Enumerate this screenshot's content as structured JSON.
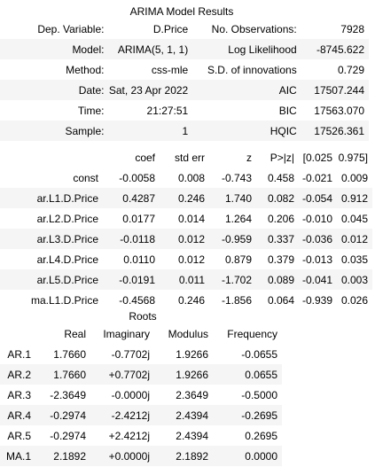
{
  "caption": "ARIMA Model Results",
  "summary": [
    [
      "Dep. Variable:",
      "D.Price",
      "No. Observations:",
      "7928"
    ],
    [
      "Model:",
      "ARIMA(5, 1, 1)",
      "Log Likelihood",
      "-8745.622"
    ],
    [
      "Method:",
      "css-mle",
      "S.D. of innovations",
      "0.729"
    ],
    [
      "Date:",
      "Sat, 23 Apr 2022",
      "AIC",
      "17507.244"
    ],
    [
      "Time:",
      "21:27:51",
      "BIC",
      "17563.070"
    ],
    [
      "Sample:",
      "1",
      "HQIC",
      "17526.361"
    ]
  ],
  "coef_headers": [
    "",
    "coef",
    "std err",
    "z",
    "P>|z|",
    "[0.025",
    "0.975]"
  ],
  "coef_rows": [
    [
      "const",
      "-0.0058",
      "0.008",
      "-0.743",
      "0.458",
      "-0.021",
      "0.009"
    ],
    [
      "ar.L1.D.Price",
      "0.4287",
      "0.246",
      "1.740",
      "0.082",
      "-0.054",
      "0.912"
    ],
    [
      "ar.L2.D.Price",
      "0.0177",
      "0.014",
      "1.264",
      "0.206",
      "-0.010",
      "0.045"
    ],
    [
      "ar.L3.D.Price",
      "-0.0118",
      "0.012",
      "-0.959",
      "0.337",
      "-0.036",
      "0.012"
    ],
    [
      "ar.L4.D.Price",
      "0.0110",
      "0.012",
      "0.879",
      "0.379",
      "-0.013",
      "0.035"
    ],
    [
      "ar.L5.D.Price",
      "-0.0191",
      "0.011",
      "-1.702",
      "0.089",
      "-0.041",
      "0.003"
    ],
    [
      "ma.L1.D.Price",
      "-0.4568",
      "0.246",
      "-1.856",
      "0.064",
      "-0.939",
      "0.026"
    ]
  ],
  "roots_caption": "Roots",
  "roots_headers": [
    "",
    "Real",
    "Imaginary",
    "Modulus",
    "Frequency"
  ],
  "roots_rows": [
    [
      "AR.1",
      "1.7660",
      "-0.7702j",
      "1.9266",
      "-0.0655"
    ],
    [
      "AR.2",
      "1.7660",
      "+0.7702j",
      "1.9266",
      "0.0655"
    ],
    [
      "AR.3",
      "-2.3649",
      "-0.0000j",
      "2.3649",
      "-0.5000"
    ],
    [
      "AR.4",
      "-0.2974",
      "-2.4212j",
      "2.4394",
      "-0.2695"
    ],
    [
      "AR.5",
      "-0.2974",
      "+2.4212j",
      "2.4394",
      "0.2695"
    ],
    [
      "MA.1",
      "2.1892",
      "+0.0000j",
      "2.1892",
      "0.0000"
    ]
  ]
}
